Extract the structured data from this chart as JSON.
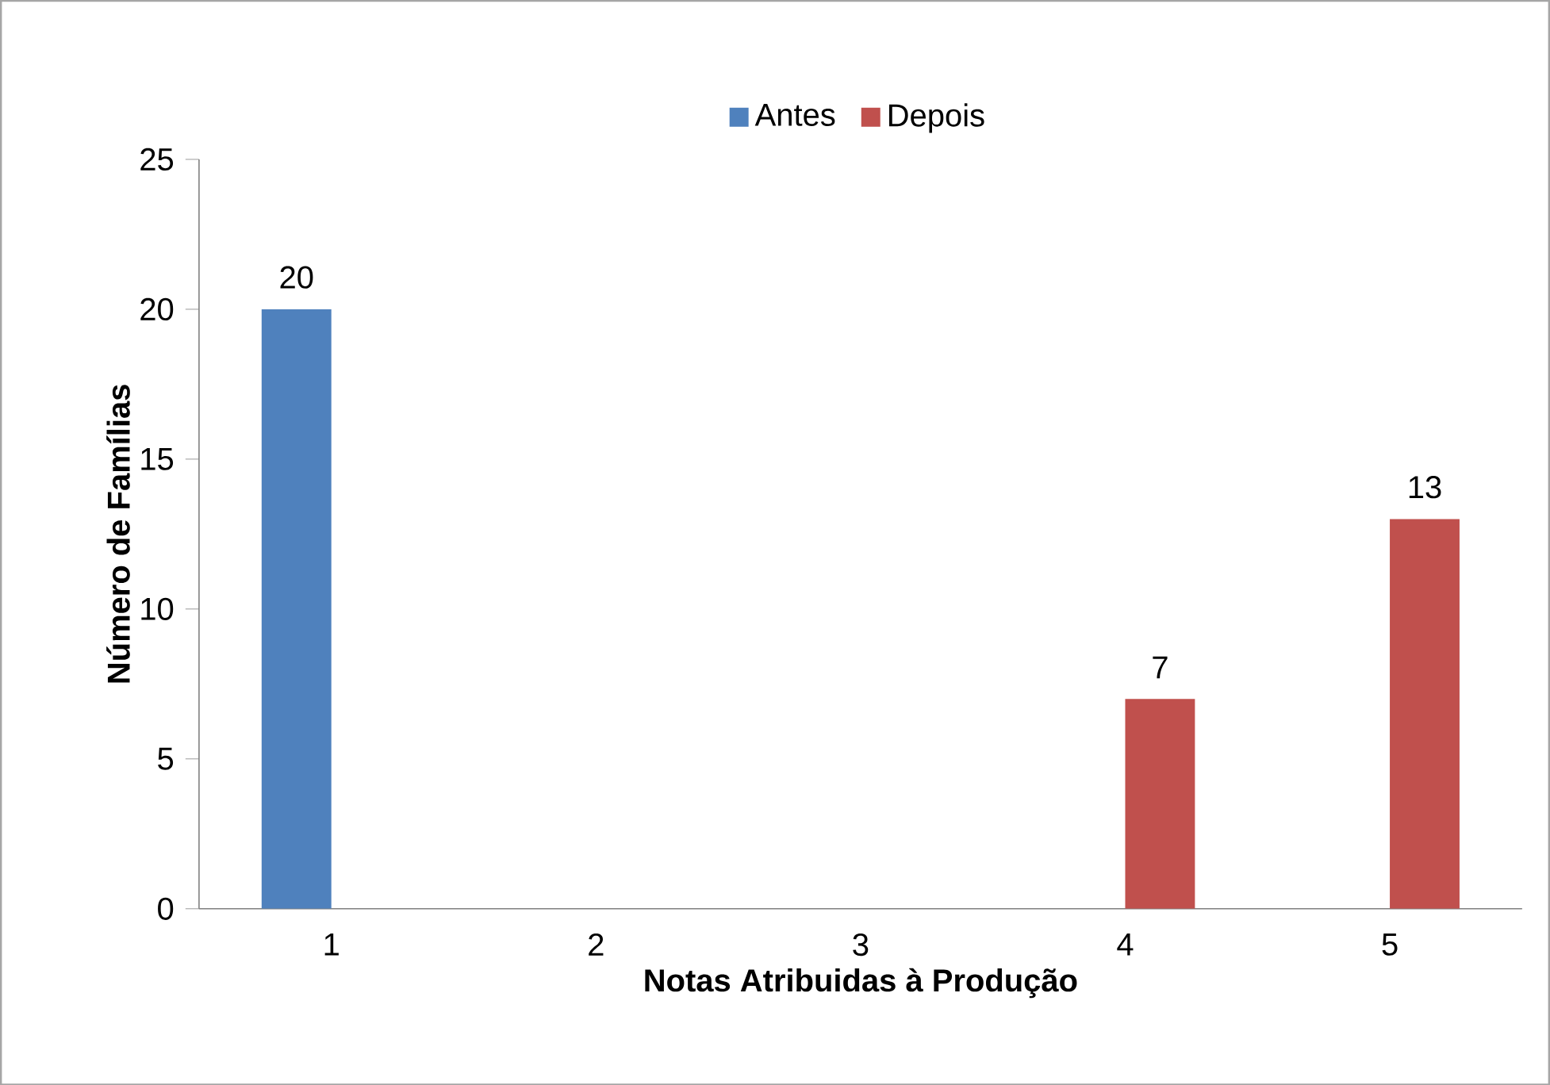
{
  "chart_data": {
    "type": "bar",
    "xlabel": "Notas Atribuidas à Produção",
    "ylabel": "Número de Famílias",
    "categories": [
      "1",
      "2",
      "3",
      "4",
      "5"
    ],
    "series": [
      {
        "name": "Antes",
        "color": "#4f81bd",
        "values": [
          20,
          null,
          null,
          null,
          null
        ],
        "value_labels": [
          "20",
          null,
          null,
          null,
          null
        ]
      },
      {
        "name": "Depois",
        "color": "#c0504d",
        "values": [
          null,
          null,
          null,
          7,
          13
        ],
        "value_labels": [
          null,
          null,
          null,
          "7",
          "13"
        ]
      }
    ],
    "ylim": [
      0,
      25
    ],
    "yticks": [
      0,
      5,
      10,
      15,
      20,
      25
    ],
    "grid": false,
    "legend": "top"
  }
}
